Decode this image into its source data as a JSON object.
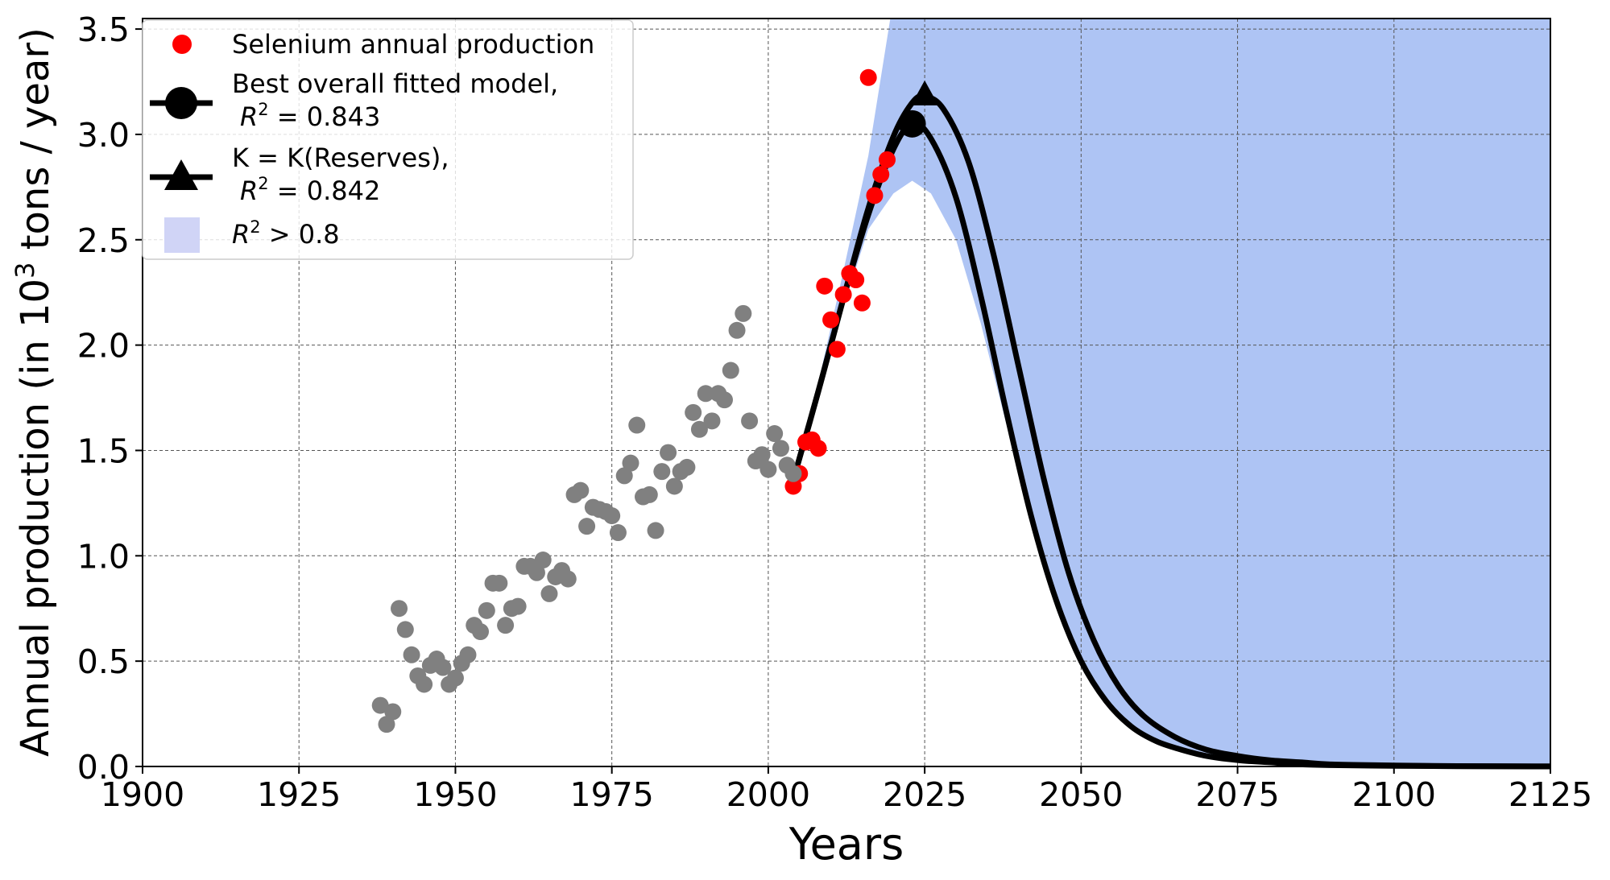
{
  "colors": {
    "band": "#aec4f4",
    "band_legend": "#d0d4f6",
    "observed_recent": "#ff0000",
    "observed_historic": "#808080",
    "model_line": "#000000",
    "grid": "#555555"
  },
  "chart_data": {
    "type": "line",
    "xlabel": "Years",
    "ylabel": "Annual production (in 10³ tons / year)",
    "ylabel_parts": [
      "Annual production (in 10",
      "3",
      " tons / year)"
    ],
    "xlim": [
      1900,
      2125
    ],
    "ylim": [
      0,
      3.55
    ],
    "xticks": [
      1900,
      1925,
      1950,
      1975,
      2000,
      2025,
      2050,
      2075,
      2100,
      2125
    ],
    "yticks": [
      "0.0",
      "0.5",
      "1.0",
      "1.5",
      "2.0",
      "2.5",
      "3.0",
      "3.5"
    ],
    "grid": true,
    "legend_position": "top-left",
    "legend": [
      {
        "symbol": "dot",
        "label": "Selenium annual production"
      },
      {
        "symbol": "circle-line",
        "label": "Best overall fitted model,",
        "r2_label": "R",
        "r2_sup": "2",
        "r2_text": " = 0.843"
      },
      {
        "symbol": "triangle-line",
        "label": "K = K(Reserves),",
        "r2_label": "R",
        "r2_sup": "2",
        "r2_text": " = 0.842"
      },
      {
        "symbol": "patch",
        "label": "",
        "r2_label": "R",
        "r2_sup": "2",
        "r2_text": " > 0.8"
      }
    ],
    "series": [
      {
        "name": "Selenium annual production (fitted period)",
        "kind": "scatter",
        "color": "#ff0000",
        "x": [
          2004,
          2005,
          2006,
          2007,
          2008,
          2009,
          2010,
          2011,
          2012,
          2013,
          2014,
          2015,
          2016,
          2017,
          2018,
          2019
        ],
        "y": [
          1.33,
          1.39,
          1.54,
          1.55,
          1.51,
          2.28,
          2.12,
          1.98,
          2.24,
          2.34,
          2.31,
          2.2,
          3.27,
          2.71,
          2.81,
          2.88
        ]
      },
      {
        "name": "Historic production",
        "kind": "scatter",
        "color": "#808080",
        "x": [
          1938,
          1939,
          1940,
          1941,
          1942,
          1943,
          1944,
          1945,
          1946,
          1947,
          1948,
          1949,
          1950,
          1951,
          1952,
          1953,
          1954,
          1955,
          1956,
          1957,
          1958,
          1959,
          1960,
          1961,
          1962,
          1963,
          1964,
          1965,
          1966,
          1967,
          1968,
          1969,
          1970,
          1971,
          1972,
          1973,
          1974,
          1975,
          1976,
          1977,
          1978,
          1979,
          1980,
          1981,
          1982,
          1983,
          1984,
          1985,
          1986,
          1987,
          1988,
          1989,
          1990,
          1991,
          1992,
          1993,
          1994,
          1995,
          1996,
          1997,
          1998,
          1999,
          2000,
          2001,
          2002,
          2003,
          2004
        ],
        "y": [
          0.29,
          0.2,
          0.26,
          0.75,
          0.65,
          0.53,
          0.43,
          0.39,
          0.48,
          0.51,
          0.47,
          0.39,
          0.42,
          0.49,
          0.53,
          0.67,
          0.64,
          0.74,
          0.87,
          0.87,
          0.67,
          0.75,
          0.76,
          0.95,
          0.95,
          0.92,
          0.98,
          0.82,
          0.9,
          0.93,
          0.89,
          1.29,
          1.31,
          1.14,
          1.23,
          1.22,
          1.21,
          1.19,
          1.11,
          1.38,
          1.44,
          1.62,
          1.28,
          1.29,
          1.12,
          1.4,
          1.49,
          1.33,
          1.4,
          1.42,
          1.68,
          1.6,
          1.77,
          1.64,
          1.77,
          1.74,
          1.88,
          2.07,
          2.15,
          1.64,
          1.45,
          1.48,
          1.41,
          1.58,
          1.51,
          1.43,
          1.39
        ]
      },
      {
        "name": "Best overall fitted model",
        "kind": "line",
        "color": "#000000",
        "x": [
          2004,
          2008,
          2012,
          2016,
          2020,
          2023,
          2026,
          2030,
          2034,
          2038,
          2042,
          2046,
          2050,
          2054,
          2058,
          2062,
          2066,
          2070,
          2075,
          2080,
          2085,
          2090,
          2100,
          2110,
          2125
        ],
        "y": [
          1.36,
          1.78,
          2.22,
          2.62,
          2.93,
          3.05,
          2.98,
          2.7,
          2.23,
          1.69,
          1.19,
          0.79,
          0.5,
          0.31,
          0.19,
          0.12,
          0.08,
          0.05,
          0.03,
          0.02,
          0.01,
          0.006,
          0.003,
          0.001,
          0.0
        ],
        "peak": {
          "x": 2023,
          "y": 3.05,
          "marker": "circle"
        }
      },
      {
        "name": "K = K(Reserves)",
        "kind": "line",
        "color": "#000000",
        "x": [
          2004,
          2008,
          2012,
          2016,
          2020,
          2023,
          2025,
          2028,
          2032,
          2036,
          2040,
          2044,
          2048,
          2052,
          2056,
          2060,
          2065,
          2070,
          2075,
          2080,
          2085,
          2090,
          2100,
          2110,
          2125
        ],
        "y": [
          1.36,
          1.78,
          2.22,
          2.65,
          2.99,
          3.15,
          3.18,
          3.12,
          2.87,
          2.43,
          1.9,
          1.37,
          0.92,
          0.6,
          0.38,
          0.24,
          0.14,
          0.08,
          0.05,
          0.03,
          0.02,
          0.01,
          0.005,
          0.002,
          0.001
        ],
        "peak": {
          "x": 2025,
          "y": 3.18,
          "marker": "triangle"
        }
      },
      {
        "name": "R² > 0.8 band",
        "kind": "area",
        "color": "#aec4f4",
        "upper_x": [
          2004,
          2008,
          2012,
          2016,
          2019.5,
          2125
        ],
        "upper_y": [
          1.4,
          1.82,
          2.35,
          2.9,
          3.55,
          3.55
        ],
        "lower_x": [
          2004,
          2008,
          2012,
          2016,
          2020,
          2023,
          2026,
          2030,
          2034,
          2038,
          2042,
          2046,
          2050,
          2054,
          2058,
          2062,
          2066,
          2070,
          2075,
          2080,
          2085,
          2090,
          2100,
          2110,
          2125
        ],
        "lower_y": [
          1.34,
          1.76,
          2.18,
          2.55,
          2.72,
          2.78,
          2.72,
          2.5,
          2.1,
          1.63,
          1.17,
          0.79,
          0.5,
          0.3,
          0.18,
          0.11,
          0.07,
          0.04,
          0.025,
          0.015,
          0.01,
          0.005,
          0.002,
          0.001,
          0.0
        ]
      }
    ]
  }
}
